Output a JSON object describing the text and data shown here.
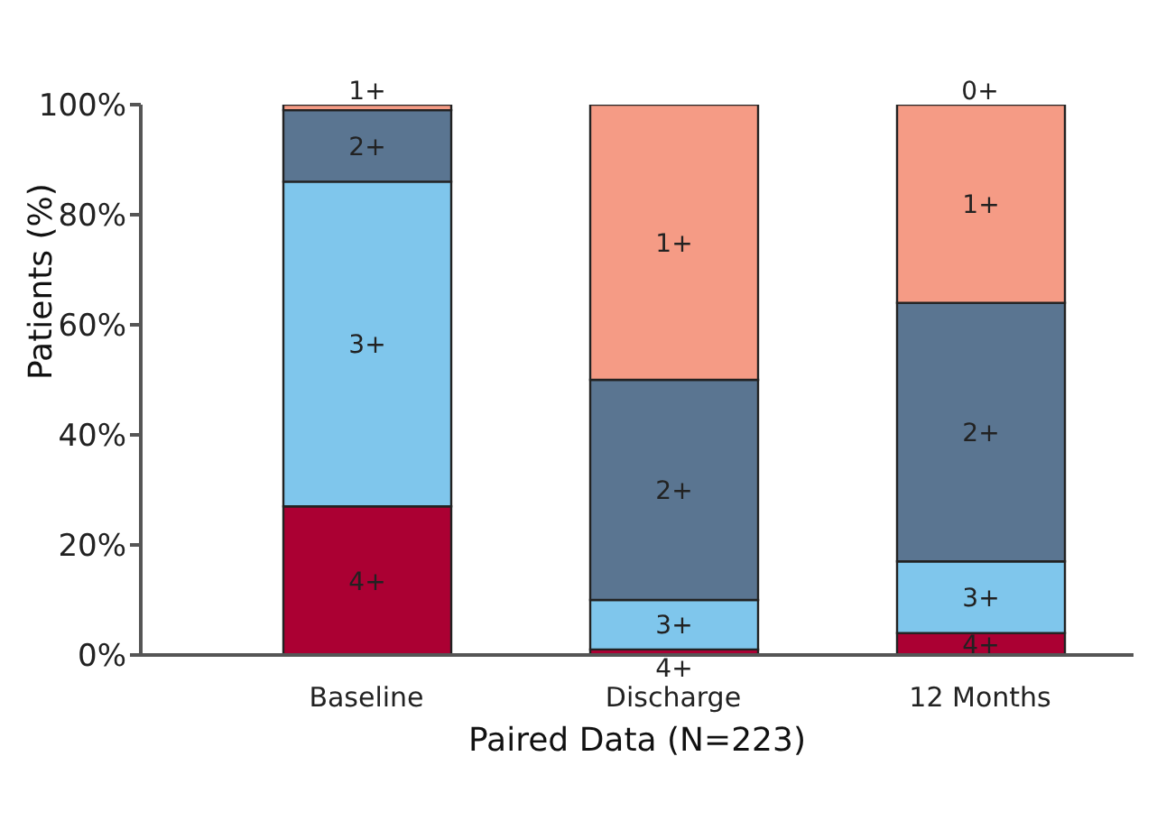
{
  "chart_data": {
    "type": "bar",
    "stacked": true,
    "xlabel": "Paired Data (N=223)",
    "ylabel": "Patients (%)",
    "categories": [
      "Baseline",
      "Discharge",
      "12 Months"
    ],
    "series": [
      {
        "name": "4+",
        "color": "#ab0033",
        "values": [
          27,
          1,
          4
        ]
      },
      {
        "name": "3+",
        "color": "#7fc6ec",
        "values": [
          59,
          9,
          13
        ]
      },
      {
        "name": "2+",
        "color": "#5a7591",
        "values": [
          13,
          40,
          47
        ]
      },
      {
        "name": "1+",
        "color": "#f59b85",
        "values": [
          1,
          50,
          36
        ]
      },
      {
        "name": "0+",
        "values": [
          null,
          null,
          0
        ]
      }
    ],
    "ylim": [
      0,
      100
    ],
    "yticks": [
      {
        "value": 0,
        "label": "0%"
      },
      {
        "value": 20,
        "label": "20%"
      },
      {
        "value": 40,
        "label": "40%"
      },
      {
        "value": 60,
        "label": "60%"
      },
      {
        "value": 80,
        "label": "80%"
      },
      {
        "value": 100,
        "label": "100%"
      }
    ],
    "grid": false,
    "legend": false
  }
}
